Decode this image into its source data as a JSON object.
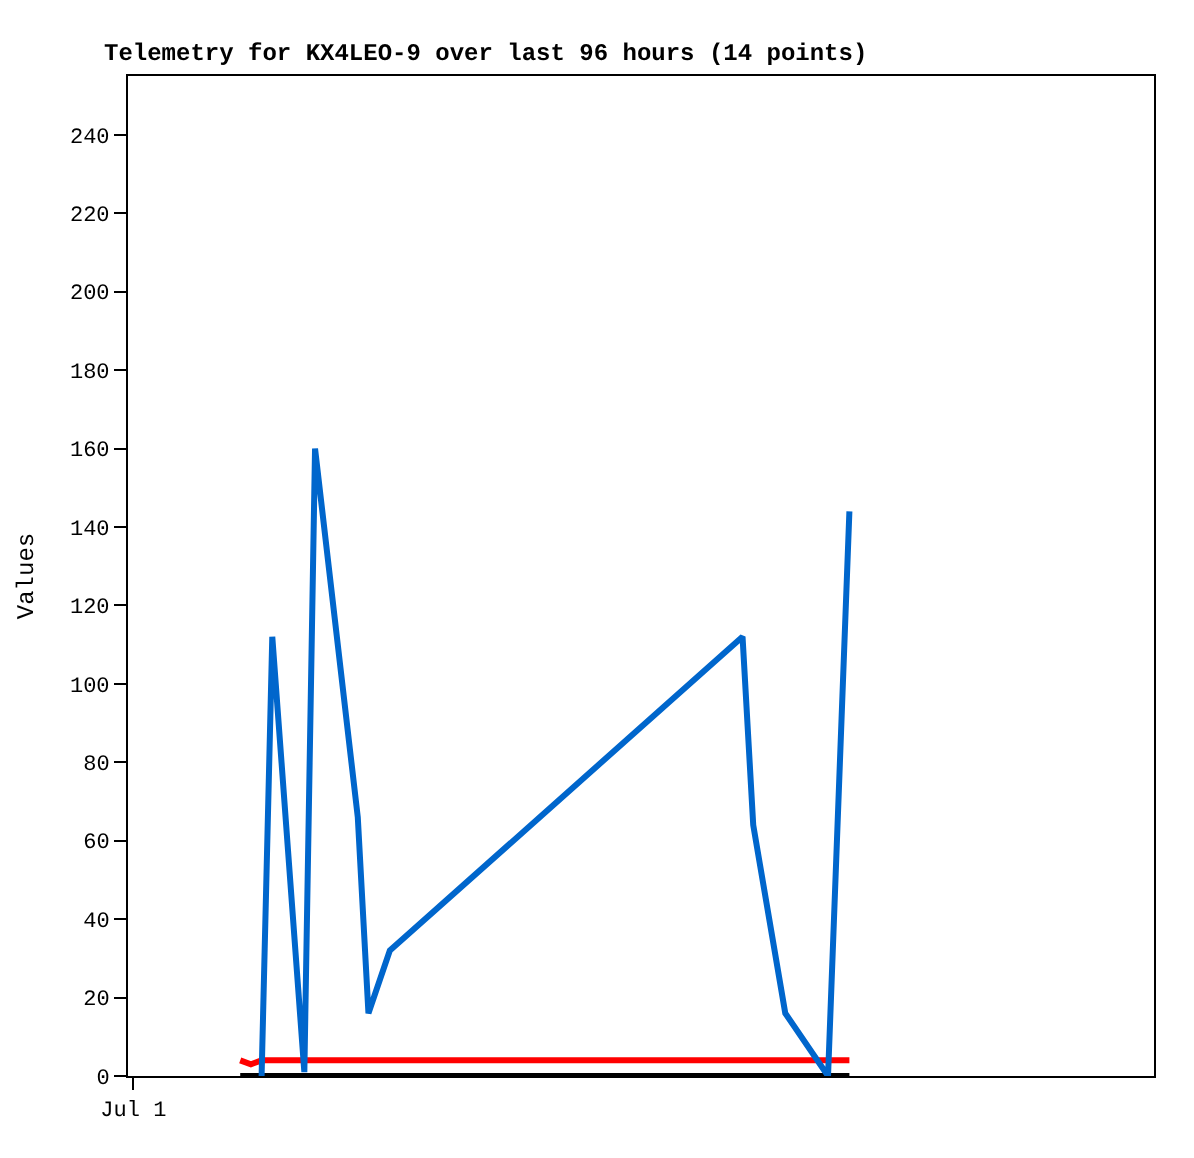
{
  "chart_data": {
    "type": "line",
    "title": "Telemetry for KX4LEO-9 over last 96 hours (14 points)",
    "ylabel": "Values",
    "categories": [
      "Jul 1",
      null,
      null,
      null,
      null,
      null,
      null,
      null,
      null,
      null,
      null,
      null,
      null,
      null,
      null,
      null,
      null,
      null,
      null,
      null,
      null,
      null,
      null,
      null,
      null,
      null,
      null,
      null,
      null,
      null,
      null,
      null,
      null,
      null,
      null,
      null,
      null,
      null,
      null,
      null,
      null,
      null,
      null,
      null,
      null,
      null,
      null,
      null,
      null,
      null,
      null,
      null,
      null,
      null,
      null,
      null,
      null,
      null,
      null,
      null,
      null,
      null,
      null,
      null,
      null,
      null,
      null,
      null,
      null,
      null,
      null,
      null,
      null,
      null,
      null,
      null,
      null,
      null,
      null,
      null,
      null,
      null,
      null,
      null,
      null,
      null,
      null,
      null,
      null,
      null,
      null,
      null,
      null,
      null,
      null,
      null
    ],
    "ylim": [
      0,
      255
    ],
    "yticks": [
      0,
      20,
      40,
      60,
      80,
      100,
      120,
      140,
      160,
      180,
      200,
      220,
      240
    ],
    "marker": "none",
    "line_style": "solid",
    "series": [
      {
        "color": "#000000",
        "values": [
          null,
          null,
          null,
          null,
          null,
          null,
          null,
          null,
          null,
          null,
          0,
          null,
          null,
          null,
          null,
          null,
          null,
          null,
          null,
          null,
          null,
          null,
          null,
          null,
          null,
          null,
          null,
          null,
          null,
          null,
          null,
          null,
          null,
          null,
          null,
          null,
          null,
          null,
          null,
          null,
          null,
          null,
          null,
          null,
          null,
          null,
          null,
          null,
          null,
          null,
          null,
          null,
          null,
          null,
          null,
          null,
          null,
          null,
          null,
          null,
          null,
          null,
          null,
          null,
          null,
          null,
          null,
          0,
          null,
          null,
          null,
          null,
          null,
          null,
          null,
          null,
          null,
          null,
          null,
          null,
          null,
          null,
          null,
          null,
          null,
          null,
          null,
          null,
          null,
          null,
          null,
          null,
          null,
          null,
          null,
          null
        ]
      },
      {
        "color": "#ff0000",
        "values": [
          null,
          null,
          null,
          null,
          null,
          null,
          null,
          null,
          null,
          null,
          4,
          3,
          4,
          null,
          null,
          null,
          null,
          null,
          null,
          null,
          null,
          null,
          null,
          null,
          null,
          null,
          null,
          null,
          null,
          null,
          null,
          null,
          null,
          null,
          null,
          null,
          null,
          null,
          null,
          null,
          null,
          null,
          null,
          null,
          null,
          null,
          null,
          null,
          null,
          null,
          null,
          null,
          null,
          null,
          null,
          null,
          null,
          null,
          null,
          null,
          null,
          null,
          null,
          null,
          null,
          null,
          null,
          4,
          null,
          null,
          null,
          null,
          null,
          null,
          null,
          null,
          null,
          null,
          null,
          null,
          null,
          null,
          null,
          null,
          null,
          null,
          null,
          null,
          null,
          null,
          null,
          null,
          null,
          null,
          null,
          null
        ]
      },
      {
        "color": "#0066cc",
        "values": [
          null,
          null,
          null,
          null,
          null,
          null,
          null,
          null,
          null,
          null,
          null,
          null,
          0,
          112,
          null,
          null,
          1,
          160,
          null,
          null,
          null,
          66,
          16,
          null,
          32,
          null,
          null,
          null,
          null,
          null,
          null,
          null,
          null,
          null,
          null,
          null,
          null,
          null,
          null,
          null,
          null,
          null,
          null,
          null,
          null,
          null,
          null,
          null,
          null,
          null,
          null,
          null,
          null,
          null,
          null,
          null,
          null,
          112,
          64,
          null,
          null,
          16,
          null,
          null,
          null,
          0,
          null,
          144,
          null,
          null,
          null,
          null,
          null,
          null,
          null,
          null,
          null,
          null,
          null,
          null,
          null,
          null,
          null,
          null,
          null,
          null,
          null,
          null,
          null,
          null,
          null,
          null,
          null,
          null,
          null,
          null
        ]
      }
    ]
  }
}
